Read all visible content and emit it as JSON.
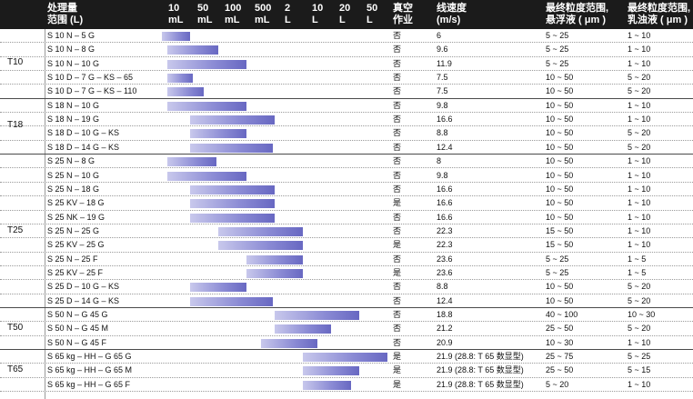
{
  "headers": {
    "model": "处理量\n范围 (L)",
    "scale": [
      "10\nmL",
      "50\nmL",
      "100\nmL",
      "500\nmL",
      "2\nL",
      "10\nL",
      "20\nL",
      "50\nL"
    ],
    "vacuum": "真空\n作业",
    "speed": "线速度\n(m/s)",
    "susp": "最终粒度范围,\n悬浮液 ( μm )",
    "emul": "最终粒度范围,\n乳浊液 ( μm )"
  },
  "groups": [
    {
      "label": "T10",
      "start": 0,
      "count": 5
    },
    {
      "label": "T18",
      "start": 5,
      "count": 4
    },
    {
      "label": "T25",
      "start": 9,
      "count": 11
    },
    {
      "label": "T50",
      "start": 20,
      "count": 3
    },
    {
      "label": "T65",
      "start": 23,
      "count": 3
    }
  ],
  "rows": [
    {
      "model": "S 10 N – 5 G",
      "range": [
        0.0,
        1.0
      ],
      "vacuum": "否",
      "speed": "6",
      "susp": "5 ~ 25",
      "emul": "1 ~ 10"
    },
    {
      "model": "S 10 N – 8 G",
      "range": [
        0.2,
        2.0
      ],
      "vacuum": "否",
      "speed": "9.6",
      "susp": "5 ~ 25",
      "emul": "1 ~ 10"
    },
    {
      "model": "S 10 N – 10 G",
      "range": [
        0.2,
        3.0
      ],
      "vacuum": "否",
      "speed": "11.9",
      "susp": "5 ~ 25",
      "emul": "1 ~ 10"
    },
    {
      "model": "S 10 D – 7 G – KS – 65",
      "range": [
        0.2,
        1.1
      ],
      "vacuum": "否",
      "speed": "7.5",
      "susp": "10 ~ 50",
      "emul": "5 ~ 20"
    },
    {
      "model": "S 10 D – 7 G – KS – 110",
      "range": [
        0.2,
        1.5
      ],
      "vacuum": "否",
      "speed": "7.5",
      "susp": "10 ~ 50",
      "emul": "5 ~ 20"
    },
    {
      "model": "S 18 N – 10 G",
      "range": [
        0.2,
        3.0
      ],
      "vacuum": "否",
      "speed": "9.8",
      "susp": "10 ~ 50",
      "emul": "1 ~ 10"
    },
    {
      "model": "S 18 N – 19 G",
      "range": [
        1.0,
        4.0
      ],
      "vacuum": "否",
      "speed": "16.6",
      "susp": "10 ~ 50",
      "emul": "1 ~ 10"
    },
    {
      "model": "S 18 D – 10 G – KS",
      "range": [
        1.0,
        3.0
      ],
      "vacuum": "否",
      "speed": "8.8",
      "susp": "10 ~ 50",
      "emul": "5 ~ 20"
    },
    {
      "model": "S 18 D – 14 G – KS",
      "range": [
        1.0,
        3.95
      ],
      "vacuum": "否",
      "speed": "12.4",
      "susp": "10 ~ 50",
      "emul": "5 ~ 20"
    },
    {
      "model": "S 25 N – 8 G",
      "range": [
        0.2,
        1.95
      ],
      "vacuum": "否",
      "speed": "8",
      "susp": "10 ~ 50",
      "emul": "1 ~ 10"
    },
    {
      "model": "S 25 N – 10 G",
      "range": [
        0.2,
        3.0
      ],
      "vacuum": "否",
      "speed": "9.8",
      "susp": "10 ~ 50",
      "emul": "1 ~ 10"
    },
    {
      "model": "S 25 N – 18 G",
      "range": [
        1.0,
        4.0
      ],
      "vacuum": "否",
      "speed": "16.6",
      "susp": "10 ~ 50",
      "emul": "1 ~ 10"
    },
    {
      "model": "S 25 KV – 18 G",
      "range": [
        1.0,
        4.0
      ],
      "vacuum": "是",
      "speed": "16.6",
      "susp": "10 ~ 50",
      "emul": "1 ~ 10"
    },
    {
      "model": "S 25 NK – 19 G",
      "range": [
        1.0,
        4.0
      ],
      "vacuum": "否",
      "speed": "16.6",
      "susp": "10 ~ 50",
      "emul": "1 ~ 10"
    },
    {
      "model": "S 25 N – 25 G",
      "range": [
        2.0,
        5.0
      ],
      "vacuum": "否",
      "speed": "22.3",
      "susp": "15 ~ 50",
      "emul": "1 ~ 10"
    },
    {
      "model": "S 25 KV – 25 G",
      "range": [
        2.0,
        5.0
      ],
      "vacuum": "是",
      "speed": "22.3",
      "susp": "15 ~ 50",
      "emul": "1 ~ 10"
    },
    {
      "model": "S 25 N – 25 F",
      "range": [
        3.0,
        5.0
      ],
      "vacuum": "否",
      "speed": "23.6",
      "susp": "5 ~ 25",
      "emul": "1 ~ 5"
    },
    {
      "model": "S 25 KV – 25 F",
      "range": [
        3.0,
        5.0
      ],
      "vacuum": "是",
      "speed": "23.6",
      "susp": "5 ~ 25",
      "emul": "1 ~ 5"
    },
    {
      "model": "S 25 D – 10 G – KS",
      "range": [
        1.0,
        3.0
      ],
      "vacuum": "否",
      "speed": "8.8",
      "susp": "10 ~ 50",
      "emul": "5 ~ 20"
    },
    {
      "model": "S 25 D – 14 G – KS",
      "range": [
        1.0,
        3.95
      ],
      "vacuum": "否",
      "speed": "12.4",
      "susp": "10 ~ 50",
      "emul": "5 ~ 20"
    },
    {
      "model": "S 50 N – G 45 G",
      "range": [
        4.0,
        7.0
      ],
      "vacuum": "否",
      "speed": "18.8",
      "susp": "40 ~ 100",
      "emul": "10 ~ 30"
    },
    {
      "model": "S 50 N – G 45 M",
      "range": [
        4.0,
        6.0
      ],
      "vacuum": "否",
      "speed": "21.2",
      "susp": "25 ~ 50",
      "emul": "5 ~ 20"
    },
    {
      "model": "S 50 N – G 45 F",
      "range": [
        3.5,
        5.5
      ],
      "vacuum": "否",
      "speed": "20.9",
      "susp": "10 ~ 30",
      "emul": "1 ~ 10"
    },
    {
      "model": "S 65 kg – HH – G 65 G",
      "range": [
        5.0,
        8.0
      ],
      "vacuum": "是",
      "speed": "21.9 (28.8: T 65 数显型)",
      "susp": "25 ~ 75",
      "emul": "5 ~ 25"
    },
    {
      "model": "S 65 kg – HH – G 65 M",
      "range": [
        5.0,
        7.0
      ],
      "vacuum": "是",
      "speed": "21.9 (28.8: T 65 数显型)",
      "susp": "25 ~ 50",
      "emul": "5 ~ 15"
    },
    {
      "model": "S 65 kg – HH – G 65 F",
      "range": [
        5.0,
        6.7
      ],
      "vacuum": "是",
      "speed": "21.9 (28.8: T 65 数显型)",
      "susp": "5 ~ 20",
      "emul": "1 ~ 10"
    }
  ],
  "colors": {
    "header_bg": "#1b1b1b",
    "bar_light": "#c8c8ec",
    "bar_dark": "#6868c2"
  }
}
